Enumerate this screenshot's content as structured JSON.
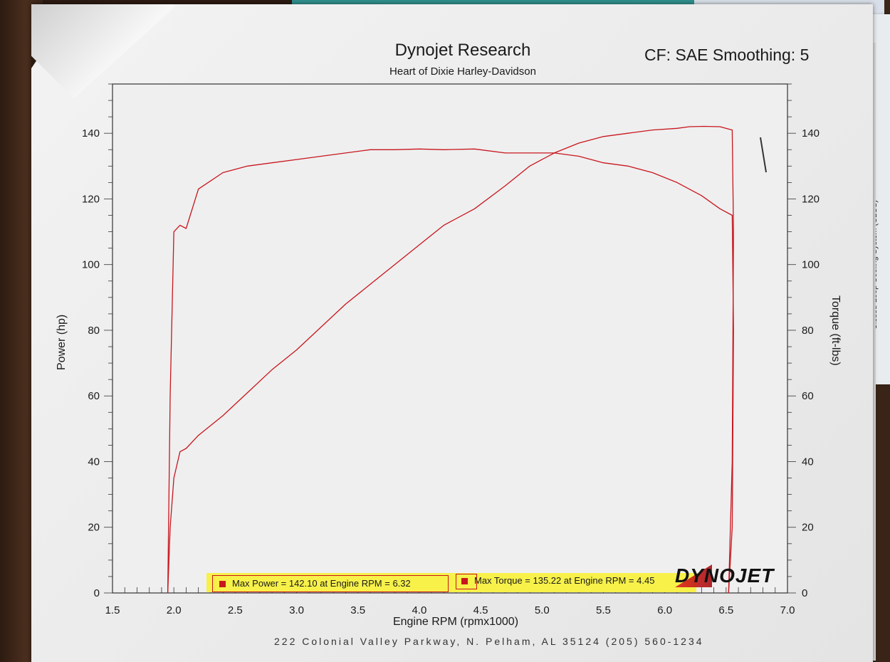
{
  "colors": {
    "curve": "#c8161d",
    "legend_bg": "#f7f14a",
    "paper": "#ececec",
    "grid": "#8a8a8a"
  },
  "header": {
    "title": "Dynojet Research",
    "subtitle": "Heart of Dixie Harley-Davidson",
    "cf_label": "CF: SAE Smoothing: 5"
  },
  "side_sheet_label": "• Closed-Loop Cooling System (CLCS)",
  "brand": "DYNOJET",
  "legend": {
    "max_power": "Max Power = 142.10 at Engine RPM = 6.32",
    "max_torque": "Max Torque = 135.22 at Engine RPM = 4.45"
  },
  "footer_text": "222 Colonial Valley Parkway, N. Pelham, AL 35124 (205) 560-1234",
  "chart_data": {
    "type": "line",
    "xlabel": "Engine RPM (rpmx1000)",
    "ylabel": "Power (hp)",
    "y2label": "Torque (ft-lbs)",
    "xlim": [
      1.5,
      7.0
    ],
    "ylim": [
      0,
      155
    ],
    "y2lim": [
      0,
      155
    ],
    "grid": true,
    "x_ticks": [
      "1.5",
      "2.0",
      "2.5",
      "3.0",
      "3.5",
      "4.0",
      "4.5",
      "5.0",
      "5.5",
      "6.0",
      "6.5",
      "7.0"
    ],
    "y_ticks": [
      "0",
      "20",
      "40",
      "60",
      "80",
      "100",
      "120",
      "140"
    ],
    "y2_ticks": [
      "0",
      "20",
      "40",
      "60",
      "80",
      "100",
      "120",
      "140"
    ],
    "legend_position": "bottom",
    "series": [
      {
        "axis": "left",
        "x": [
          1.95,
          1.97,
          2.0,
          2.05,
          2.1,
          2.2,
          2.4,
          2.6,
          2.8,
          3.0,
          3.2,
          3.4,
          3.6,
          3.8,
          4.0,
          4.2,
          4.45,
          4.7,
          4.9,
          5.1,
          5.3,
          5.5,
          5.7,
          5.9,
          6.1,
          6.2,
          6.32,
          6.45,
          6.55,
          6.56,
          6.55,
          6.52
        ],
        "values": [
          0,
          20,
          35,
          43,
          44,
          48,
          54,
          61,
          68,
          74,
          81,
          88,
          94,
          100,
          106,
          112,
          117,
          124,
          130,
          134,
          137,
          139,
          140,
          141,
          141.5,
          142,
          142.1,
          142,
          141,
          110,
          40,
          0
        ]
      },
      {
        "axis": "right",
        "x": [
          1.95,
          1.97,
          2.0,
          2.05,
          2.1,
          2.2,
          2.4,
          2.6,
          2.8,
          3.0,
          3.2,
          3.4,
          3.6,
          3.8,
          4.0,
          4.2,
          4.45,
          4.7,
          4.9,
          5.1,
          5.3,
          5.5,
          5.7,
          5.9,
          6.1,
          6.3,
          6.45,
          6.55,
          6.56,
          6.55,
          6.52
        ],
        "values": [
          0,
          60,
          110,
          112,
          111,
          123,
          128,
          130,
          131,
          132,
          133,
          134,
          135,
          135,
          135.2,
          135,
          135.2,
          134,
          134,
          134,
          133,
          131,
          130,
          128,
          125,
          121,
          117,
          115,
          80,
          20,
          0
        ]
      }
    ]
  }
}
